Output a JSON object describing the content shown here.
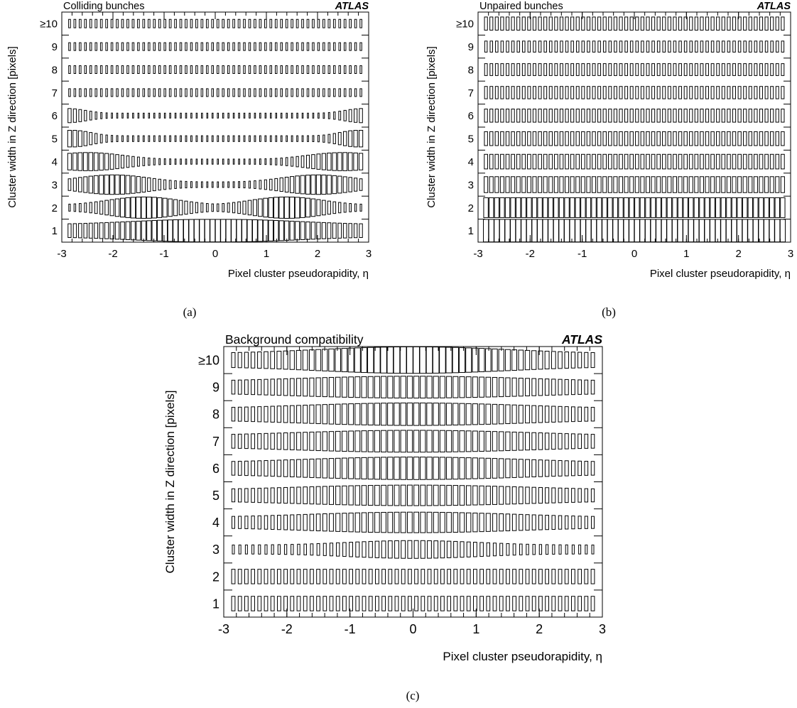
{
  "figure": {
    "captions": [
      "(a)",
      "(b)",
      "(c)"
    ]
  },
  "chart_data": [
    {
      "type": "box",
      "title": "Colliding bunches",
      "experiment_label": "ATLAS",
      "xlabel": "Pixel cluster pseudorapidity, η",
      "ylabel": "Cluster width in Z direction [pixels]",
      "xlim": [
        -3,
        3
      ],
      "x_ticks": [
        "-3",
        "-2",
        "-1",
        "0",
        "1",
        "2",
        "3"
      ],
      "y_ticks": [
        "1",
        "2",
        "3",
        "4",
        "5",
        "6",
        "7",
        "8",
        "9",
        "≥10"
      ],
      "description": "box size proportional to relative cluster count per eta bin",
      "rows": [
        {
          "y": "1",
          "peak_size": 1.0,
          "profile": "central_wide"
        },
        {
          "y": "2",
          "peak_size": 0.9,
          "profile": "double_hump_1.4"
        },
        {
          "y": "3",
          "peak_size": 0.75,
          "profile": "double_hump_2.0"
        },
        {
          "y": "4",
          "peak_size": 0.65,
          "profile": "double_hump_2.5"
        },
        {
          "y": "5",
          "peak_size": 0.55,
          "profile": "edges_2.8"
        },
        {
          "y": "6",
          "peak_size": 0.4,
          "profile": "edges_2.9"
        },
        {
          "y": "7",
          "peak_size": 0.12,
          "profile": "flat"
        },
        {
          "y": "8",
          "peak_size": 0.12,
          "profile": "flat"
        },
        {
          "y": "9",
          "peak_size": 0.12,
          "profile": "flat"
        },
        {
          "y": "≥10",
          "peak_size": 0.14,
          "profile": "flat"
        }
      ]
    },
    {
      "type": "box",
      "title": "Unpaired bunches",
      "experiment_label": "ATLAS",
      "xlabel": "Pixel cluster pseudorapidity, η",
      "ylabel": "Cluster width in Z direction [pixels]",
      "xlim": [
        -3,
        3
      ],
      "x_ticks": [
        "-3",
        "-2",
        "-1",
        "0",
        "1",
        "2",
        "3"
      ],
      "y_ticks": [
        "1",
        "2",
        "3",
        "4",
        "5",
        "6",
        "7",
        "8",
        "9",
        "≥10"
      ],
      "description": "box size proportional to relative cluster count per eta bin",
      "rows": [
        {
          "y": "1",
          "peak_size": 1.0,
          "profile": "flat"
        },
        {
          "y": "2",
          "peak_size": 0.78,
          "profile": "flat"
        },
        {
          "y": "3",
          "peak_size": 0.5,
          "profile": "flat"
        },
        {
          "y": "4",
          "peak_size": 0.42,
          "profile": "flat"
        },
        {
          "y": "5",
          "peak_size": 0.38,
          "profile": "flat"
        },
        {
          "y": "6",
          "peak_size": 0.34,
          "profile": "flat"
        },
        {
          "y": "7",
          "peak_size": 0.3,
          "profile": "flat"
        },
        {
          "y": "8",
          "peak_size": 0.28,
          "profile": "flat"
        },
        {
          "y": "9",
          "peak_size": 0.24,
          "profile": "flat"
        },
        {
          "y": "≥10",
          "peak_size": 0.34,
          "profile": "flat"
        }
      ]
    },
    {
      "type": "box",
      "title": "Background compatibility",
      "experiment_label": "ATLAS",
      "xlabel": "Pixel cluster pseudorapidity, η",
      "ylabel": "Cluster width in Z direction [pixels]",
      "xlim": [
        -3,
        3
      ],
      "x_ticks": [
        "-3",
        "-2",
        "-1",
        "0",
        "1",
        "2",
        "3"
      ],
      "y_ticks": [
        "1",
        "2",
        "3",
        "4",
        "5",
        "6",
        "7",
        "8",
        "9",
        "≥10"
      ],
      "description": "box size proportional to relative cluster count per eta bin",
      "rows": [
        {
          "y": "1",
          "peak_size": 0.3,
          "profile": "flat"
        },
        {
          "y": "2",
          "peak_size": 0.3,
          "profile": "flat"
        },
        {
          "y": "3",
          "peak_size": 0.45,
          "profile": "central_0.9"
        },
        {
          "y": "4",
          "peak_size": 0.6,
          "profile": "central_1.4"
        },
        {
          "y": "5",
          "peak_size": 0.6,
          "profile": "central_1.6"
        },
        {
          "y": "6",
          "peak_size": 0.72,
          "profile": "central_1.5"
        },
        {
          "y": "7",
          "peak_size": 0.68,
          "profile": "central_1.6"
        },
        {
          "y": "8",
          "peak_size": 0.72,
          "profile": "central_1.5"
        },
        {
          "y": "9",
          "peak_size": 0.68,
          "profile": "central_1.6"
        },
        {
          "y": "≥10",
          "peak_size": 1.0,
          "profile": "central_1.3"
        }
      ]
    }
  ]
}
